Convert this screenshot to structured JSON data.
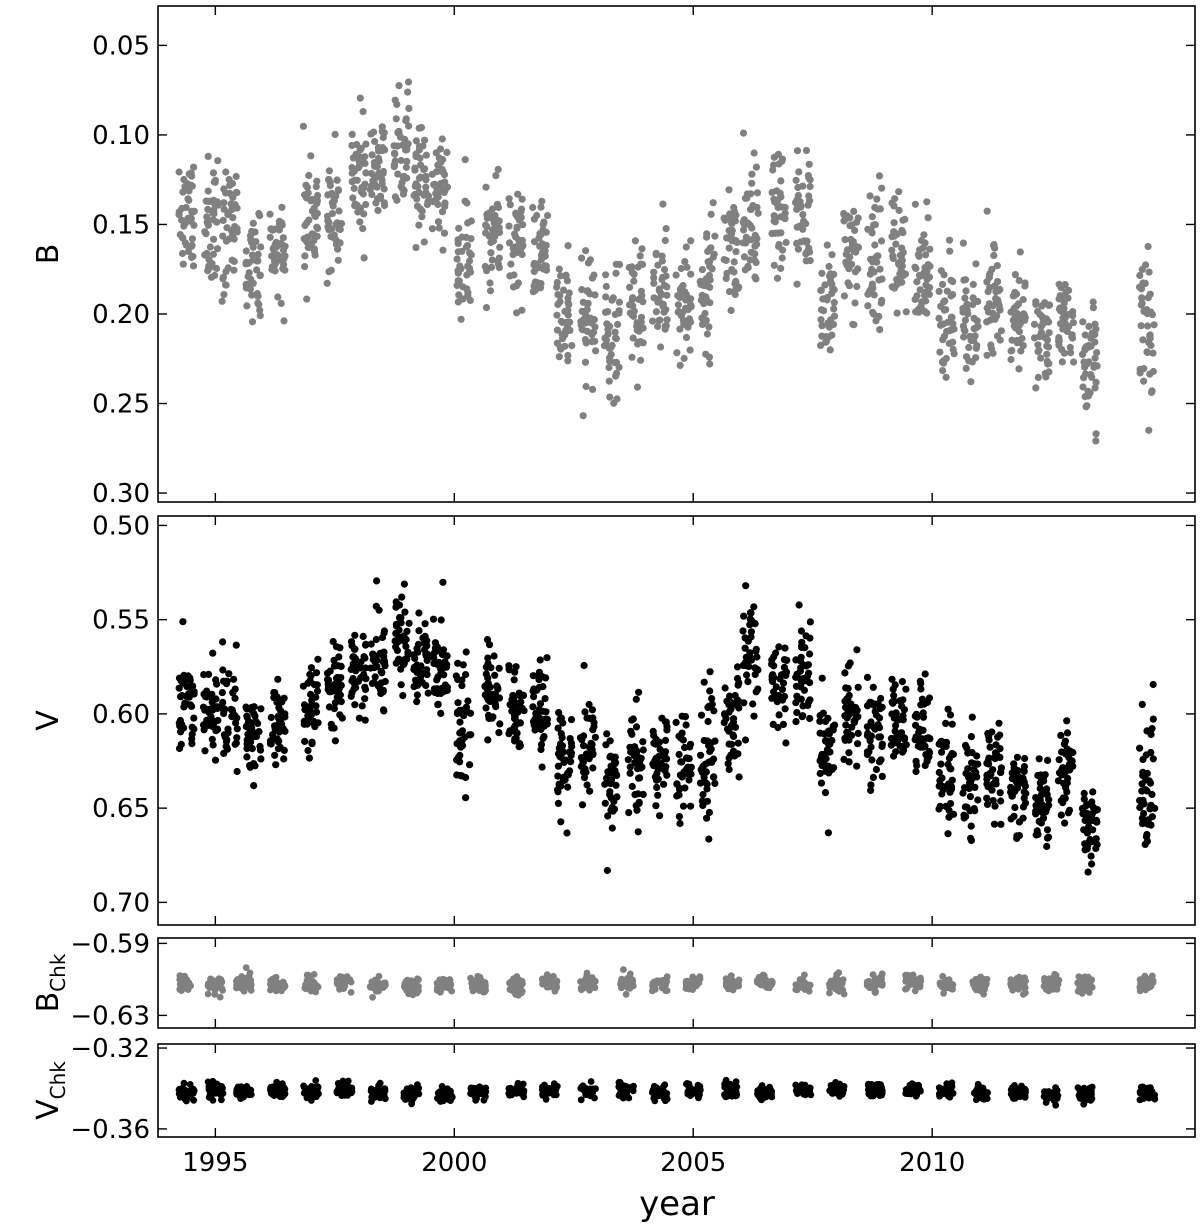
{
  "chart_data": {
    "type": "scatter",
    "shared_x": {
      "label": "year",
      "range": [
        1993.8,
        2015.5
      ],
      "ticks": [
        1995,
        2000,
        2005,
        2010
      ],
      "tick_labels": [
        "1995",
        "2000",
        "2005",
        "2010"
      ]
    },
    "panels": [
      {
        "id": "B",
        "ylabel": "B",
        "ylabel_sub": "",
        "color": "#808080",
        "y_inverted": true,
        "ylim": [
          0.028,
          0.305
        ],
        "yticks": [
          0.05,
          0.1,
          0.15,
          0.2,
          0.25,
          0.3
        ],
        "ytick_labels": [
          "0.05",
          "0.10",
          "0.15",
          "0.20",
          "0.25",
          "0.30"
        ],
        "seasons": [
          {
            "year": 1994.4,
            "mean": 0.15,
            "spread": 0.04
          },
          {
            "year": 1994.9,
            "mean": 0.15,
            "spread": 0.035
          },
          {
            "year": 1995.3,
            "mean": 0.15,
            "spread": 0.045
          },
          {
            "year": 1995.8,
            "mean": 0.175,
            "spread": 0.03
          },
          {
            "year": 1996.3,
            "mean": 0.165,
            "spread": 0.03
          },
          {
            "year": 1997.0,
            "mean": 0.15,
            "spread": 0.035
          },
          {
            "year": 1997.5,
            "mean": 0.14,
            "spread": 0.035
          },
          {
            "year": 1998.0,
            "mean": 0.125,
            "spread": 0.035
          },
          {
            "year": 1998.4,
            "mean": 0.115,
            "spread": 0.035
          },
          {
            "year": 1998.9,
            "mean": 0.105,
            "spread": 0.03
          },
          {
            "year": 1999.3,
            "mean": 0.125,
            "spread": 0.035
          },
          {
            "year": 1999.7,
            "mean": 0.13,
            "spread": 0.04
          },
          {
            "year": 2000.2,
            "mean": 0.165,
            "spread": 0.04
          },
          {
            "year": 2000.8,
            "mean": 0.155,
            "spread": 0.03
          },
          {
            "year": 2001.3,
            "mean": 0.16,
            "spread": 0.035
          },
          {
            "year": 2001.8,
            "mean": 0.165,
            "spread": 0.03
          },
          {
            "year": 2002.3,
            "mean": 0.2,
            "spread": 0.035
          },
          {
            "year": 2002.8,
            "mean": 0.2,
            "spread": 0.04
          },
          {
            "year": 2003.3,
            "mean": 0.21,
            "spread": 0.04
          },
          {
            "year": 2003.8,
            "mean": 0.195,
            "spread": 0.04
          },
          {
            "year": 2004.3,
            "mean": 0.19,
            "spread": 0.04
          },
          {
            "year": 2004.8,
            "mean": 0.195,
            "spread": 0.04
          },
          {
            "year": 2005.3,
            "mean": 0.185,
            "spread": 0.04
          },
          {
            "year": 2005.8,
            "mean": 0.165,
            "spread": 0.04
          },
          {
            "year": 2006.2,
            "mean": 0.14,
            "spread": 0.05
          },
          {
            "year": 2006.8,
            "mean": 0.14,
            "spread": 0.04
          },
          {
            "year": 2007.3,
            "mean": 0.145,
            "spread": 0.04
          },
          {
            "year": 2007.8,
            "mean": 0.19,
            "spread": 0.035
          },
          {
            "year": 2008.3,
            "mean": 0.165,
            "spread": 0.04
          },
          {
            "year": 2008.8,
            "mean": 0.17,
            "spread": 0.04
          },
          {
            "year": 2009.3,
            "mean": 0.165,
            "spread": 0.035
          },
          {
            "year": 2009.8,
            "mean": 0.175,
            "spread": 0.035
          },
          {
            "year": 2010.3,
            "mean": 0.2,
            "spread": 0.035
          },
          {
            "year": 2010.8,
            "mean": 0.205,
            "spread": 0.035
          },
          {
            "year": 2011.3,
            "mean": 0.195,
            "spread": 0.035
          },
          {
            "year": 2011.8,
            "mean": 0.205,
            "spread": 0.03
          },
          {
            "year": 2012.3,
            "mean": 0.21,
            "spread": 0.03
          },
          {
            "year": 2012.8,
            "mean": 0.2,
            "spread": 0.03
          },
          {
            "year": 2013.3,
            "mean": 0.23,
            "spread": 0.035
          },
          {
            "year": 2014.5,
            "mean": 0.21,
            "spread": 0.045
          }
        ]
      },
      {
        "id": "V",
        "ylabel": "V",
        "ylabel_sub": "",
        "color": "#000000",
        "y_inverted": true,
        "ylim": [
          0.495,
          0.712
        ],
        "yticks": [
          0.5,
          0.55,
          0.6,
          0.65,
          0.7
        ],
        "ytick_labels": [
          "0.50",
          "0.55",
          "0.60",
          "0.65",
          "0.70"
        ],
        "seasons": [
          {
            "year": 1994.4,
            "mean": 0.59,
            "spread": 0.035
          },
          {
            "year": 1994.9,
            "mean": 0.595,
            "spread": 0.03
          },
          {
            "year": 1995.3,
            "mean": 0.6,
            "spread": 0.035
          },
          {
            "year": 1995.8,
            "mean": 0.61,
            "spread": 0.025
          },
          {
            "year": 1996.3,
            "mean": 0.605,
            "spread": 0.025
          },
          {
            "year": 1997.0,
            "mean": 0.595,
            "spread": 0.03
          },
          {
            "year": 1997.5,
            "mean": 0.585,
            "spread": 0.03
          },
          {
            "year": 1998.0,
            "mean": 0.575,
            "spread": 0.025
          },
          {
            "year": 1998.4,
            "mean": 0.57,
            "spread": 0.03
          },
          {
            "year": 1998.9,
            "mean": 0.555,
            "spread": 0.025
          },
          {
            "year": 1999.3,
            "mean": 0.575,
            "spread": 0.03
          },
          {
            "year": 1999.7,
            "mean": 0.575,
            "spread": 0.03
          },
          {
            "year": 2000.2,
            "mean": 0.605,
            "spread": 0.035
          },
          {
            "year": 2000.8,
            "mean": 0.59,
            "spread": 0.025
          },
          {
            "year": 2001.3,
            "mean": 0.6,
            "spread": 0.03
          },
          {
            "year": 2001.8,
            "mean": 0.6,
            "spread": 0.025
          },
          {
            "year": 2002.3,
            "mean": 0.625,
            "spread": 0.03
          },
          {
            "year": 2002.8,
            "mean": 0.62,
            "spread": 0.03
          },
          {
            "year": 2003.3,
            "mean": 0.64,
            "spread": 0.035
          },
          {
            "year": 2003.8,
            "mean": 0.625,
            "spread": 0.035
          },
          {
            "year": 2004.3,
            "mean": 0.625,
            "spread": 0.035
          },
          {
            "year": 2004.8,
            "mean": 0.625,
            "spread": 0.035
          },
          {
            "year": 2005.3,
            "mean": 0.625,
            "spread": 0.035
          },
          {
            "year": 2005.8,
            "mean": 0.605,
            "spread": 0.03
          },
          {
            "year": 2006.2,
            "mean": 0.57,
            "spread": 0.04
          },
          {
            "year": 2006.8,
            "mean": 0.58,
            "spread": 0.03
          },
          {
            "year": 2007.3,
            "mean": 0.58,
            "spread": 0.03
          },
          {
            "year": 2007.8,
            "mean": 0.615,
            "spread": 0.03
          },
          {
            "year": 2008.3,
            "mean": 0.6,
            "spread": 0.035
          },
          {
            "year": 2008.8,
            "mean": 0.61,
            "spread": 0.03
          },
          {
            "year": 2009.3,
            "mean": 0.605,
            "spread": 0.03
          },
          {
            "year": 2009.8,
            "mean": 0.61,
            "spread": 0.03
          },
          {
            "year": 2010.3,
            "mean": 0.63,
            "spread": 0.03
          },
          {
            "year": 2010.8,
            "mean": 0.635,
            "spread": 0.03
          },
          {
            "year": 2011.3,
            "mean": 0.63,
            "spread": 0.03
          },
          {
            "year": 2011.8,
            "mean": 0.64,
            "spread": 0.025
          },
          {
            "year": 2012.3,
            "mean": 0.645,
            "spread": 0.025
          },
          {
            "year": 2012.8,
            "mean": 0.63,
            "spread": 0.03
          },
          {
            "year": 2013.3,
            "mean": 0.66,
            "spread": 0.03
          },
          {
            "year": 2014.5,
            "mean": 0.64,
            "spread": 0.04
          }
        ]
      },
      {
        "id": "BChk",
        "ylabel": "B",
        "ylabel_sub": "Chk",
        "color": "#808080",
        "y_inverted": false,
        "ylim": [
          -0.637,
          -0.587
        ],
        "yticks": [
          -0.63,
          -0.59
        ],
        "ytick_labels": [
          "−0.63",
          "−0.59"
        ],
        "seasons": [
          {
            "year": 1994.4,
            "mean": -0.613,
            "spread": 0.005
          },
          {
            "year": 1995.0,
            "mean": -0.613,
            "spread": 0.005
          },
          {
            "year": 1995.6,
            "mean": -0.612,
            "spread": 0.005
          },
          {
            "year": 1996.3,
            "mean": -0.613,
            "spread": 0.005
          },
          {
            "year": 1997.0,
            "mean": -0.613,
            "spread": 0.005
          },
          {
            "year": 1997.7,
            "mean": -0.612,
            "spread": 0.005
          },
          {
            "year": 1998.4,
            "mean": -0.613,
            "spread": 0.005
          },
          {
            "year": 1999.1,
            "mean": -0.614,
            "spread": 0.005
          },
          {
            "year": 1999.8,
            "mean": -0.613,
            "spread": 0.005
          },
          {
            "year": 2000.5,
            "mean": -0.613,
            "spread": 0.005
          },
          {
            "year": 2001.3,
            "mean": -0.613,
            "spread": 0.005
          },
          {
            "year": 2002.0,
            "mean": -0.612,
            "spread": 0.005
          },
          {
            "year": 2002.8,
            "mean": -0.612,
            "spread": 0.005
          },
          {
            "year": 2003.6,
            "mean": -0.612,
            "spread": 0.005
          },
          {
            "year": 2004.3,
            "mean": -0.613,
            "spread": 0.005
          },
          {
            "year": 2005.0,
            "mean": -0.612,
            "spread": 0.005
          },
          {
            "year": 2005.8,
            "mean": -0.613,
            "spread": 0.005
          },
          {
            "year": 2006.5,
            "mean": -0.612,
            "spread": 0.005
          },
          {
            "year": 2007.3,
            "mean": -0.613,
            "spread": 0.005
          },
          {
            "year": 2008.0,
            "mean": -0.613,
            "spread": 0.005
          },
          {
            "year": 2008.8,
            "mean": -0.612,
            "spread": 0.005
          },
          {
            "year": 2009.6,
            "mean": -0.612,
            "spread": 0.005
          },
          {
            "year": 2010.3,
            "mean": -0.613,
            "spread": 0.005
          },
          {
            "year": 2011.0,
            "mean": -0.613,
            "spread": 0.005
          },
          {
            "year": 2011.8,
            "mean": -0.613,
            "spread": 0.005
          },
          {
            "year": 2012.5,
            "mean": -0.613,
            "spread": 0.005
          },
          {
            "year": 2013.2,
            "mean": -0.613,
            "spread": 0.005
          },
          {
            "year": 2014.5,
            "mean": -0.612,
            "spread": 0.005
          }
        ]
      },
      {
        "id": "VChk",
        "ylabel": "V",
        "ylabel_sub": "Chk",
        "color": "#000000",
        "y_inverted": false,
        "ylim": [
          -0.364,
          -0.318
        ],
        "yticks": [
          -0.36,
          -0.32
        ],
        "ytick_labels": [
          "−0.36",
          "−0.32"
        ],
        "seasons": [
          {
            "year": 1994.4,
            "mean": -0.342,
            "spread": 0.004
          },
          {
            "year": 1995.0,
            "mean": -0.341,
            "spread": 0.004
          },
          {
            "year": 1995.6,
            "mean": -0.341,
            "spread": 0.004
          },
          {
            "year": 1996.3,
            "mean": -0.341,
            "spread": 0.004
          },
          {
            "year": 1997.0,
            "mean": -0.341,
            "spread": 0.004
          },
          {
            "year": 1997.7,
            "mean": -0.341,
            "spread": 0.004
          },
          {
            "year": 1998.4,
            "mean": -0.342,
            "spread": 0.004
          },
          {
            "year": 1999.1,
            "mean": -0.343,
            "spread": 0.004
          },
          {
            "year": 1999.8,
            "mean": -0.343,
            "spread": 0.004
          },
          {
            "year": 2000.5,
            "mean": -0.342,
            "spread": 0.004
          },
          {
            "year": 2001.3,
            "mean": -0.341,
            "spread": 0.004
          },
          {
            "year": 2002.0,
            "mean": -0.341,
            "spread": 0.004
          },
          {
            "year": 2002.8,
            "mean": -0.341,
            "spread": 0.004
          },
          {
            "year": 2003.6,
            "mean": -0.341,
            "spread": 0.004
          },
          {
            "year": 2004.3,
            "mean": -0.342,
            "spread": 0.004
          },
          {
            "year": 2005.0,
            "mean": -0.341,
            "spread": 0.004
          },
          {
            "year": 2005.8,
            "mean": -0.341,
            "spread": 0.004
          },
          {
            "year": 2006.5,
            "mean": -0.342,
            "spread": 0.004
          },
          {
            "year": 2007.3,
            "mean": -0.341,
            "spread": 0.004
          },
          {
            "year": 2008.0,
            "mean": -0.341,
            "spread": 0.004
          },
          {
            "year": 2008.8,
            "mean": -0.341,
            "spread": 0.004
          },
          {
            "year": 2009.6,
            "mean": -0.341,
            "spread": 0.004
          },
          {
            "year": 2010.3,
            "mean": -0.341,
            "spread": 0.004
          },
          {
            "year": 2011.0,
            "mean": -0.342,
            "spread": 0.004
          },
          {
            "year": 2011.8,
            "mean": -0.342,
            "spread": 0.004
          },
          {
            "year": 2012.5,
            "mean": -0.343,
            "spread": 0.004
          },
          {
            "year": 2013.2,
            "mean": -0.343,
            "spread": 0.004
          },
          {
            "year": 2014.5,
            "mean": -0.342,
            "spread": 0.004
          }
        ]
      }
    ]
  }
}
